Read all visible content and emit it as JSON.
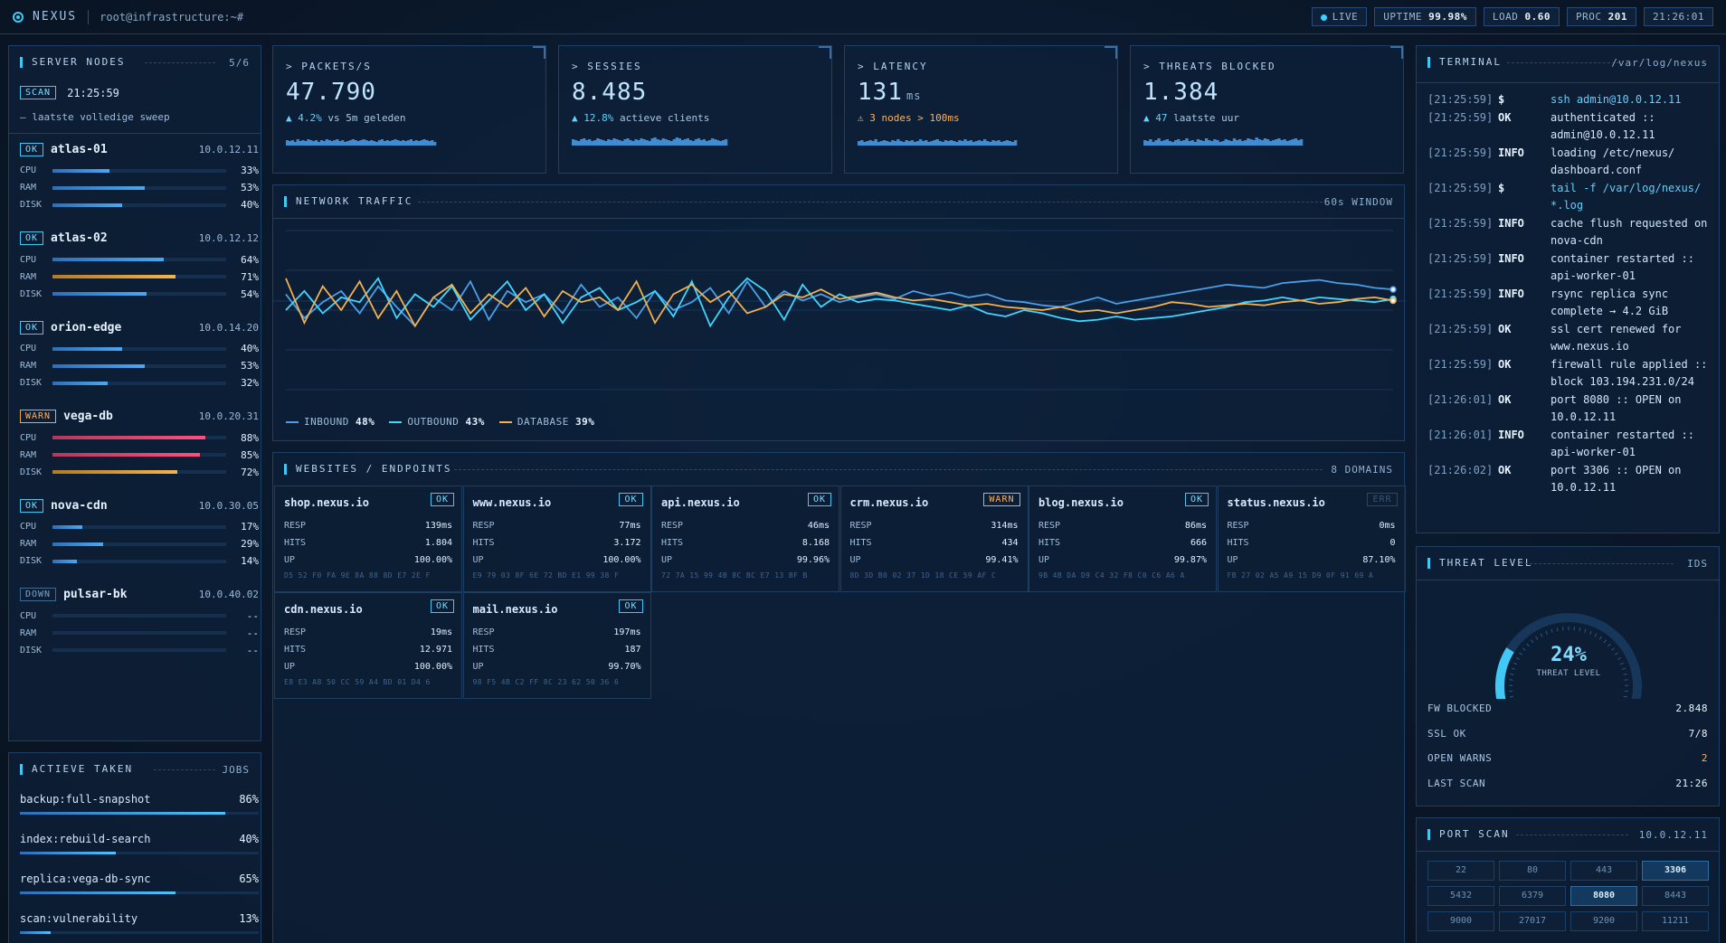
{
  "topbar": {
    "brand": "NEXUS",
    "prompt": "root@infrastructure:~#",
    "live": "LIVE",
    "uptime_label": "UPTIME",
    "uptime_value": "99.98%",
    "load_label": "LOAD",
    "load_value": "0.60",
    "proc_label": "PROC",
    "proc_value": "201",
    "clock": "21:26:01"
  },
  "nodes_panel": {
    "title": "SERVER NODES",
    "count": "5/6",
    "scan_badge": "SCAN",
    "scan_time": "21:25:59",
    "scan_note": "— laatste volledige sweep",
    "metric_labels": {
      "cpu": "CPU",
      "ram": "RAM",
      "disk": "DISK"
    },
    "nodes": [
      {
        "status": "OK",
        "name": "atlas-01",
        "ip": "10.0.12.11",
        "cpu": "33%",
        "ram": "53%",
        "disk": "40%",
        "cpu_frac": 0.33,
        "ram_frac": 0.53,
        "disk_frac": 0.4
      },
      {
        "status": "OK",
        "name": "atlas-02",
        "ip": "10.0.12.12",
        "cpu": "64%",
        "ram": "71%",
        "disk": "54%",
        "cpu_frac": 0.64,
        "ram_frac": 0.71,
        "disk_frac": 0.54
      },
      {
        "status": "OK",
        "name": "orion-edge",
        "ip": "10.0.14.20",
        "cpu": "40%",
        "ram": "53%",
        "disk": "32%",
        "cpu_frac": 0.4,
        "ram_frac": 0.53,
        "disk_frac": 0.32
      },
      {
        "status": "WARN",
        "name": "vega-db",
        "ip": "10.0.20.31",
        "cpu": "88%",
        "ram": "85%",
        "disk": "72%",
        "cpu_frac": 0.88,
        "ram_frac": 0.85,
        "disk_frac": 0.72
      },
      {
        "status": "OK",
        "name": "nova-cdn",
        "ip": "10.0.30.05",
        "cpu": "17%",
        "ram": "29%",
        "disk": "14%",
        "cpu_frac": 0.17,
        "ram_frac": 0.29,
        "disk_frac": 0.14
      },
      {
        "status": "DOWN",
        "name": "pulsar-bk",
        "ip": "10.0.40.02",
        "cpu": "--",
        "ram": "--",
        "disk": "--",
        "cpu_frac": 0,
        "ram_frac": 0,
        "disk_frac": 0
      }
    ]
  },
  "kpis": [
    {
      "label": "> PACKETS/S",
      "value": "47.790",
      "unit": "",
      "delta": "▲ 4.2%",
      "note": " vs 5m geleden"
    },
    {
      "label": "> SESSIES",
      "value": "8.485",
      "unit": "",
      "delta": "▲ 12.8%",
      "note": " actieve clients"
    },
    {
      "label": "> LATENCY",
      "value": "131",
      "unit": "ms",
      "delta": "⚠ 3 nodes > 100ms",
      "note": ""
    },
    {
      "label": "> THREATS BLOCKED",
      "value": "1.384",
      "unit": "",
      "delta": "▲ 47",
      "note": " laatste uur"
    }
  ],
  "traffic": {
    "title": "NETWORK TRAFFIC",
    "window": "60s WINDOW",
    "legend": [
      {
        "name": "INBOUND",
        "value": "48%",
        "color": "#4a9eea"
      },
      {
        "name": "OUTBOUND",
        "value": "43%",
        "color": "#3fd6ff"
      },
      {
        "name": "DATABASE",
        "value": "39%",
        "color": "#f2b04e"
      }
    ]
  },
  "chart_data": {
    "type": "line",
    "title": "NETWORK TRAFFIC",
    "xlabel": "",
    "ylabel": "",
    "ylim": [
      0,
      100
    ],
    "grid": true,
    "legend_position": "bottom-left",
    "series": [
      {
        "name": "INBOUND",
        "values": [
          60,
          45,
          55,
          62,
          48,
          65,
          52,
          40,
          58,
          50,
          68,
          44,
          62,
          55,
          60,
          48,
          66,
          52,
          58,
          45,
          62,
          50,
          55,
          64,
          48,
          68,
          52,
          62,
          56,
          60,
          55,
          58,
          60,
          57,
          62,
          59,
          61,
          58,
          60,
          56,
          55,
          53,
          52,
          55,
          58,
          54,
          56,
          58,
          60,
          62,
          64,
          66,
          65,
          64,
          67,
          68,
          69,
          67,
          66,
          64,
          63
        ]
      },
      {
        "name": "OUTBOUND",
        "values": [
          50,
          62,
          48,
          58,
          55,
          70,
          45,
          60,
          52,
          65,
          44,
          56,
          68,
          50,
          60,
          42,
          58,
          64,
          50,
          55,
          62,
          46,
          68,
          40,
          58,
          70,
          62,
          44,
          66,
          52,
          60,
          55,
          57,
          56,
          54,
          52,
          50,
          53,
          48,
          46,
          50,
          48,
          45,
          43,
          44,
          46,
          44,
          45,
          46,
          48,
          50,
          52,
          55,
          56,
          58,
          56,
          58,
          57,
          56,
          55,
          57
        ]
      },
      {
        "name": "DATABASE",
        "values": [
          70,
          42,
          65,
          50,
          68,
          45,
          62,
          40,
          58,
          66,
          48,
          60,
          52,
          64,
          46,
          62,
          55,
          58,
          50,
          68,
          42,
          60,
          66,
          55,
          62,
          48,
          52,
          60,
          58,
          63,
          57,
          59,
          61,
          58,
          56,
          57,
          55,
          53,
          54,
          52,
          51,
          50,
          52,
          49,
          50,
          48,
          50,
          52,
          55,
          54,
          52,
          53,
          54,
          53,
          55,
          56,
          54,
          55,
          57,
          58,
          56
        ]
      }
    ]
  },
  "websites": {
    "title": "WEBSITES / ENDPOINTS",
    "count": "8 DOMAINS",
    "row_labels": {
      "resp": "RESP",
      "hits": "HITS",
      "up": "UP"
    },
    "sites": [
      {
        "name": "shop.nexus.io",
        "status": "OK",
        "resp": "139ms",
        "hits": "1.804",
        "up": "100.00%",
        "hex": "D5 52 F0 FA 9E 8A 88 8D E7 2E F"
      },
      {
        "name": "www.nexus.io",
        "status": "OK",
        "resp": "77ms",
        "hits": "3.172",
        "up": "100.00%",
        "hex": "E9 79 03 8F 6E 72 BD E1 99 38 F"
      },
      {
        "name": "api.nexus.io",
        "status": "OK",
        "resp": "46ms",
        "hits": "8.168",
        "up": "99.96%",
        "hex": "72 7A 15 99 4B 8C BC E7 13 BF B"
      },
      {
        "name": "crm.nexus.io",
        "status": "WARN",
        "resp": "314ms",
        "hits": "434",
        "up": "99.41%",
        "hex": "8D 3D B0 02 37 1D 18 CE 59 AF C"
      },
      {
        "name": "blog.nexus.io",
        "status": "OK",
        "resp": "86ms",
        "hits": "666",
        "up": "99.87%",
        "hex": "9B 4B DA D9 C4 32 F8 C0 C6 A6 A"
      },
      {
        "name": "status.nexus.io",
        "status": "ERR",
        "resp": "0ms",
        "hits": "0",
        "up": "87.10%",
        "hex": "FB 27 02 A5 A9 15 D9 0F 91 69 A"
      },
      {
        "name": "cdn.nexus.io",
        "status": "OK",
        "resp": "19ms",
        "hits": "12.971",
        "up": "100.00%",
        "hex": "E8 E3 A8 50 CC 59 A4 BD 01 D4 6"
      },
      {
        "name": "mail.nexus.io",
        "status": "OK",
        "resp": "197ms",
        "hits": "187",
        "up": "99.70%",
        "hex": "98 F5 4B C2 FF 8C 23 62 50 36 6"
      }
    ]
  },
  "terminal": {
    "title": "TERMINAL",
    "path": "/var/log/nexus",
    "lines": [
      {
        "ts": "[21:25:59]",
        "lv": "$",
        "msg": "ssh admin@10.0.12.11",
        "cmd": true
      },
      {
        "ts": "[21:25:59]",
        "lv": "OK",
        "msg": "authenticated :: admin@10.0.12.11",
        "cmd": false
      },
      {
        "ts": "[21:25:59]",
        "lv": "INFO",
        "msg": "loading /etc/nexus/ dashboard.conf",
        "cmd": false
      },
      {
        "ts": "[21:25:59]",
        "lv": "$",
        "msg": "tail -f /var/log/nexus/ *.log",
        "cmd": true
      },
      {
        "ts": "[21:25:59]",
        "lv": "INFO",
        "msg": "cache flush requested on nova-cdn",
        "cmd": false
      },
      {
        "ts": "[21:25:59]",
        "lv": "INFO",
        "msg": "container restarted :: api-worker-01",
        "cmd": false
      },
      {
        "ts": "[21:25:59]",
        "lv": "INFO",
        "msg": "rsync replica sync complete → 4.2 GiB",
        "cmd": false
      },
      {
        "ts": "[21:25:59]",
        "lv": "OK",
        "msg": "ssl cert renewed for www.nexus.io",
        "cmd": false
      },
      {
        "ts": "[21:25:59]",
        "lv": "OK",
        "msg": "firewall rule applied :: block 103.194.231.0/24",
        "cmd": false
      },
      {
        "ts": "[21:26:01]",
        "lv": "OK",
        "msg": "port 8080 :: OPEN on 10.0.12.11",
        "cmd": false
      },
      {
        "ts": "[21:26:01]",
        "lv": "INFO",
        "msg": "container restarted :: api-worker-01",
        "cmd": false
      },
      {
        "ts": "[21:26:02]",
        "lv": "OK",
        "msg": "port 3306 :: OPEN on 10.0.12.11",
        "cmd": false
      }
    ]
  },
  "threat": {
    "title": "THREAT LEVEL",
    "tag": "IDS",
    "percent": "24%",
    "level_frac": 0.24,
    "gauge_label": "THREAT LEVEL",
    "stats": [
      {
        "label": "FW BLOCKED",
        "value": "2.848",
        "amber": false
      },
      {
        "label": "SSL OK",
        "value": "7/8",
        "amber": false
      },
      {
        "label": "OPEN WARNS",
        "value": "2",
        "amber": true
      },
      {
        "label": "LAST SCAN",
        "value": "21:26",
        "amber": false
      }
    ]
  },
  "ports": {
    "title": "PORT SCAN",
    "host": "10.0.12.11",
    "list": [
      {
        "port": "22",
        "open": false
      },
      {
        "port": "80",
        "open": false
      },
      {
        "port": "443",
        "open": false
      },
      {
        "port": "3306",
        "open": true
      },
      {
        "port": "5432",
        "open": false
      },
      {
        "port": "6379",
        "open": false
      },
      {
        "port": "8080",
        "open": true
      },
      {
        "port": "8443",
        "open": false
      },
      {
        "port": "9000",
        "open": false
      },
      {
        "port": "27017",
        "open": false
      },
      {
        "port": "9200",
        "open": false
      },
      {
        "port": "11211",
        "open": false
      }
    ]
  },
  "tasks": {
    "title": "ACTIEVE TAKEN",
    "tag": "JOBS",
    "list": [
      {
        "name": "backup:full-snapshot",
        "pct": "86%",
        "frac": 0.86
      },
      {
        "name": "index:rebuild-search",
        "pct": "40%",
        "frac": 0.4
      },
      {
        "name": "replica:vega-db-sync",
        "pct": "65%",
        "frac": 0.65
      },
      {
        "name": "scan:vulnerability",
        "pct": "13%",
        "frac": 0.13
      }
    ]
  },
  "colors": {
    "accent": "#41c8f5",
    "warn": "#f0a64a",
    "hot": "#ff4f7e",
    "bg": "#0b1a2e"
  }
}
